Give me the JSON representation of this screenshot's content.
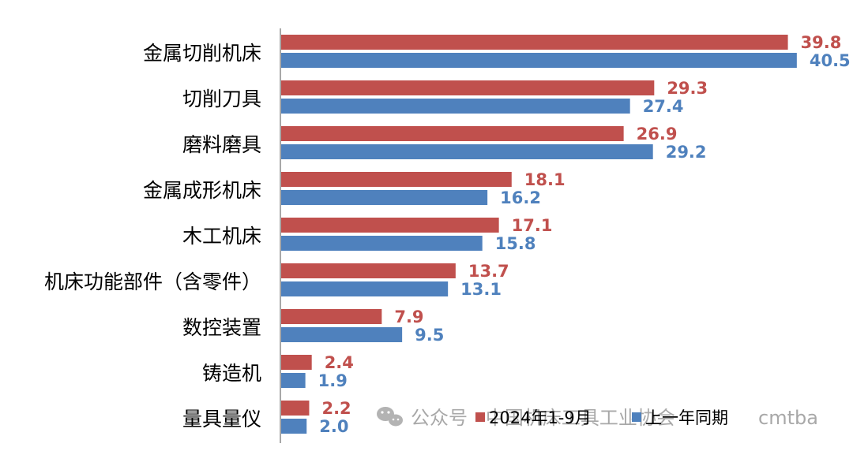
{
  "chart_data": {
    "type": "bar",
    "orientation": "horizontal",
    "categories": [
      "金属切削机床",
      "切削刀具",
      "磨料磨具",
      "金属成形机床",
      "木工机床",
      "机床功能部件（含零件）",
      "数控装置",
      "铸造机",
      "量具量仪"
    ],
    "series": [
      {
        "name": "2024年1-9月",
        "color": "#c0504d",
        "values": [
          39.8,
          29.3,
          26.9,
          18.1,
          17.1,
          13.7,
          7.9,
          2.4,
          2.2
        ]
      },
      {
        "name": "上一年同期",
        "color": "#4f81bd",
        "values": [
          40.5,
          27.4,
          29.2,
          16.2,
          15.8,
          13.1,
          9.5,
          1.9,
          2.0
        ]
      }
    ],
    "title": "",
    "xlabel": "",
    "ylabel": "",
    "xlim": [
      0,
      45
    ],
    "grid": false,
    "legend": "bottom-right",
    "data_labels": true
  },
  "watermark": {
    "icon": "wechat-icon",
    "text_left": "公众号 · 中国机床工具工业协会",
    "text_right": "cmtba"
  }
}
